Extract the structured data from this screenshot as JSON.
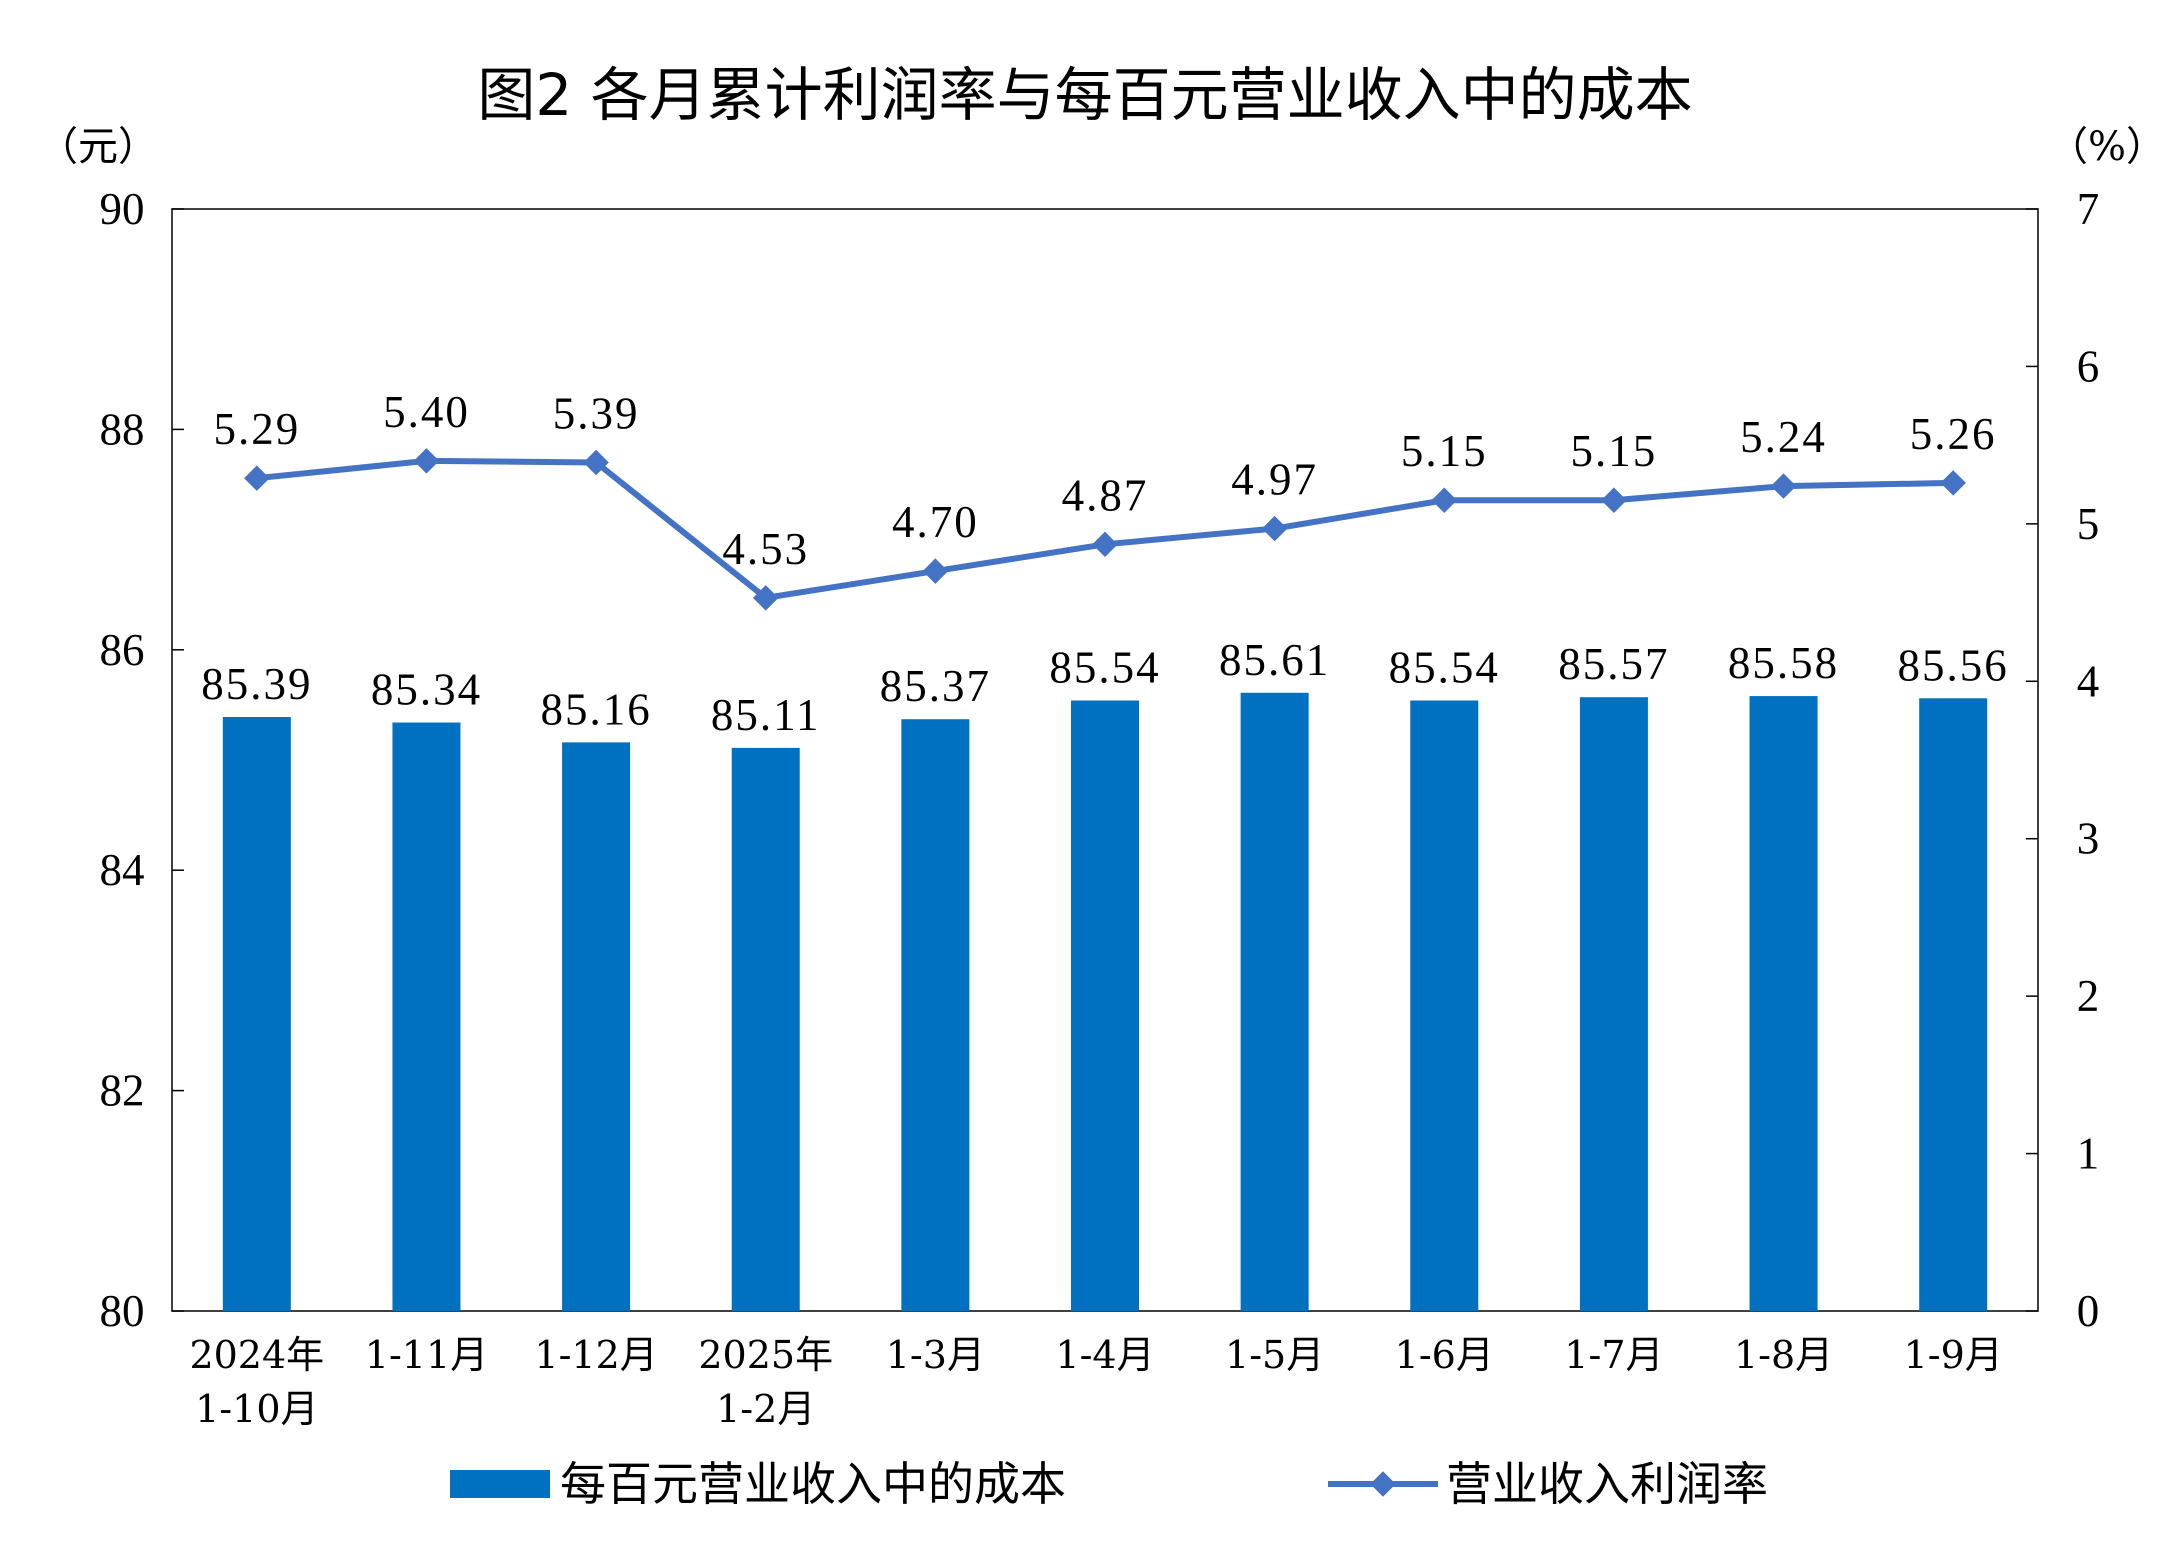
{
  "chart_data": {
    "type": "bar+line",
    "title": "图2  各月累计利润率与每百元营业收入中的成本",
    "left_unit": "（元）",
    "right_unit": "（%）",
    "categories": [
      [
        "2024年",
        "1-10月"
      ],
      [
        "1-11月"
      ],
      [
        "1-12月"
      ],
      [
        "2025年",
        "1-2月"
      ],
      [
        "1-3月"
      ],
      [
        "1-4月"
      ],
      [
        "1-5月"
      ],
      [
        "1-6月"
      ],
      [
        "1-7月"
      ],
      [
        "1-8月"
      ],
      [
        "1-9月"
      ]
    ],
    "series": [
      {
        "name": "每百元营业收入中的成本",
        "type": "bar",
        "axis": "left",
        "color": "#0070C0",
        "values": [
          85.39,
          85.34,
          85.16,
          85.11,
          85.37,
          85.54,
          85.61,
          85.54,
          85.57,
          85.58,
          85.56
        ],
        "labels": [
          "85.39",
          "85.34",
          "85.16",
          "85.11",
          "85.37",
          "85.54",
          "85.61",
          "85.54",
          "85.57",
          "85.58",
          "85.56"
        ]
      },
      {
        "name": "营业收入利润率",
        "type": "line",
        "axis": "right",
        "color": "#4472C4",
        "values": [
          5.29,
          5.4,
          5.39,
          4.53,
          4.7,
          4.87,
          4.97,
          5.15,
          5.15,
          5.24,
          5.26
        ],
        "labels": [
          "5.29",
          "5.40",
          "5.39",
          "4.53",
          "4.70",
          "4.87",
          "4.97",
          "5.15",
          "5.15",
          "5.24",
          "5.26"
        ]
      }
    ],
    "left_axis": {
      "min": 80,
      "max": 90,
      "ticks": [
        "80",
        "82",
        "84",
        "86",
        "88",
        "90"
      ]
    },
    "right_axis": {
      "min": 0,
      "max": 7,
      "ticks": [
        "0",
        "1",
        "2",
        "3",
        "4",
        "5",
        "6",
        "7"
      ]
    },
    "grid": false,
    "legend_position": "bottom"
  }
}
